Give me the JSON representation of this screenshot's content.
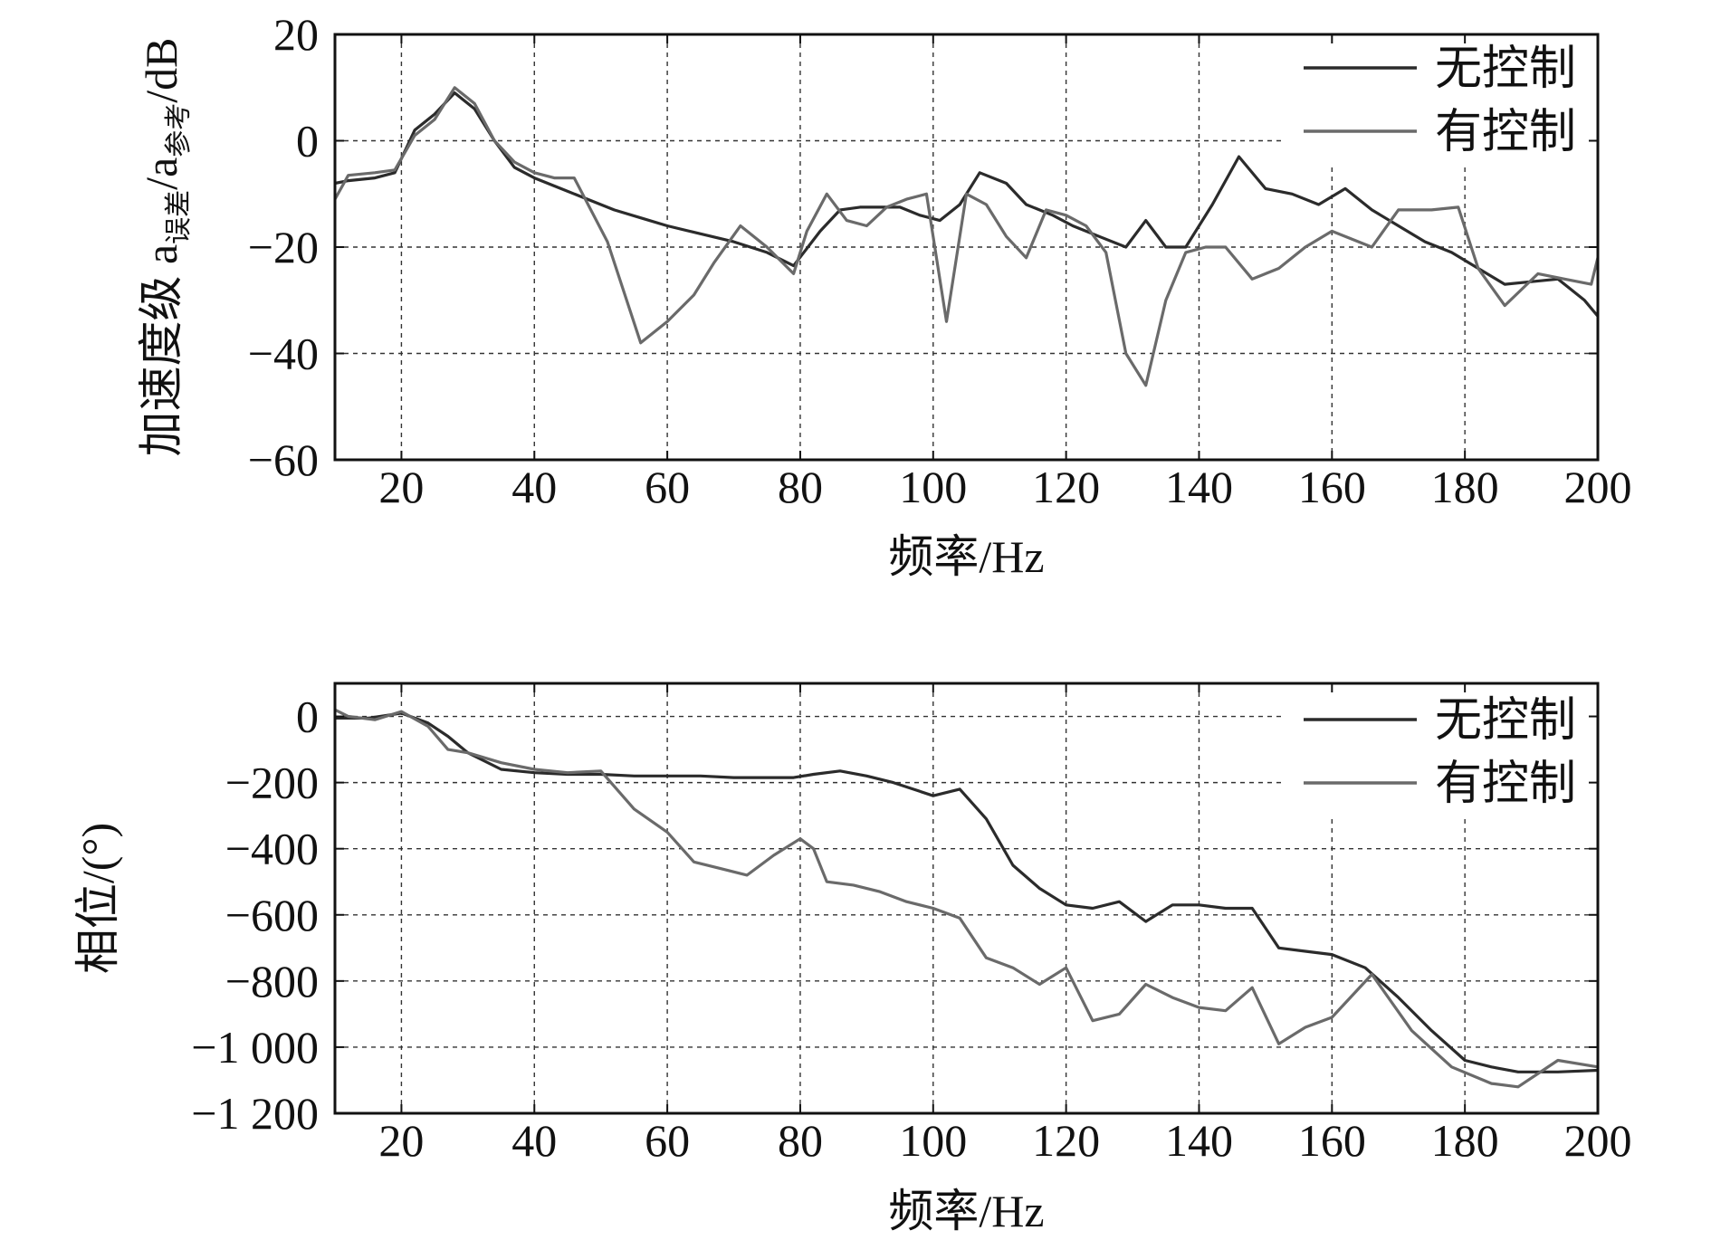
{
  "chart_data": [
    {
      "type": "line",
      "title": "",
      "xlabel": "频率/Hz",
      "ylabel": "加速度级 a误差/a参考/dB",
      "ylabel_parts": {
        "main": "加速度级 a",
        "sub1": "误差",
        "mid": "/a",
        "sub2": "参考",
        "end": "/dB"
      },
      "xlim": [
        10,
        200
      ],
      "ylim": [
        -60,
        20
      ],
      "xticks": [
        20,
        40,
        60,
        80,
        100,
        120,
        140,
        160,
        180,
        200
      ],
      "xtick_labels": [
        "20",
        "40",
        "60",
        "80",
        "100",
        "120",
        "140",
        "160",
        "180",
        "200"
      ],
      "yticks": [
        20,
        0,
        -20,
        -40,
        -60
      ],
      "ytick_labels": [
        "20",
        "0",
        "−20",
        "−40",
        "−60"
      ],
      "grid": true,
      "legend_position": "top-right",
      "series": [
        {
          "name": "无控制",
          "color": "#2b2b2b",
          "x": [
            10,
            12,
            16,
            19,
            22,
            25,
            28,
            31,
            34,
            37,
            40,
            44,
            48,
            52,
            56,
            60,
            65,
            70,
            75,
            79,
            83,
            86,
            89,
            92,
            95,
            98,
            101,
            104,
            107,
            111,
            114,
            118,
            121,
            125,
            129,
            132,
            135,
            138,
            142,
            146,
            150,
            154,
            158,
            162,
            166,
            170,
            174,
            178,
            182,
            186,
            190,
            194,
            198,
            200
          ],
          "y": [
            -8,
            -7.5,
            -7,
            -6,
            2,
            5,
            9,
            6,
            0,
            -5,
            -7,
            -9,
            -11,
            -13,
            -14.5,
            -16,
            -17.5,
            -19,
            -21,
            -23.5,
            -17,
            -13,
            -12.5,
            -12.5,
            -12.5,
            -14,
            -15,
            -12,
            -6,
            -8,
            -12,
            -14,
            -16,
            -18,
            -20,
            -15,
            -20,
            -20,
            -12,
            -3,
            -9,
            -10,
            -12,
            -9,
            -13,
            -16,
            -19,
            -21,
            -24,
            -27,
            -26.5,
            -26,
            -30,
            -33
          ]
        },
        {
          "name": "有控制",
          "color": "#6a6a6a",
          "x": [
            10,
            12,
            16,
            19,
            22,
            25,
            28,
            31,
            34,
            37,
            40,
            43,
            46,
            51,
            56,
            60,
            64,
            67,
            71,
            75,
            79,
            81,
            84,
            87,
            90,
            93,
            96,
            99,
            102,
            105,
            108,
            111,
            114,
            117,
            120,
            123,
            126,
            129,
            132,
            135,
            138,
            141,
            144,
            148,
            152,
            156,
            160,
            166,
            170,
            175,
            179,
            182,
            186,
            191,
            195,
            199,
            200
          ],
          "y": [
            -11,
            -6.5,
            -6,
            -5.5,
            1,
            4,
            10,
            7,
            0,
            -4,
            -6,
            -7,
            -7,
            -19,
            -38,
            -34,
            -29,
            -23,
            -16,
            -20,
            -25,
            -17,
            -10,
            -15,
            -16,
            -12.5,
            -11,
            -10,
            -34,
            -10,
            -12,
            -18,
            -22,
            -13,
            -14,
            -16,
            -21,
            -40,
            -46,
            -30,
            -21,
            -20,
            -20,
            -26,
            -24,
            -20,
            -17,
            -20,
            -13,
            -13,
            -12.5,
            -24,
            -31,
            -25,
            -26,
            -27,
            -22
          ]
        }
      ]
    },
    {
      "type": "line",
      "title": "",
      "xlabel": "频率/Hz",
      "ylabel": "相位/(°)",
      "xlim": [
        10,
        200
      ],
      "ylim": [
        -1200,
        100
      ],
      "xticks": [
        20,
        40,
        60,
        80,
        100,
        120,
        140,
        160,
        180,
        200
      ],
      "xtick_labels": [
        "20",
        "40",
        "60",
        "80",
        "100",
        "120",
        "140",
        "160",
        "180",
        "200"
      ],
      "yticks": [
        0,
        -200,
        -400,
        -600,
        -800,
        -1000,
        -1200
      ],
      "ytick_labels": [
        "0",
        "−200",
        "−400",
        "−600",
        "−800",
        "−1 000",
        "−1 200"
      ],
      "grid": true,
      "legend_position": "top-right",
      "series": [
        {
          "name": "无控制",
          "color": "#2b2b2b",
          "x": [
            10,
            15,
            20,
            24,
            27,
            30,
            35,
            40,
            45,
            50,
            55,
            60,
            65,
            70,
            75,
            79,
            82,
            86,
            90,
            94,
            97,
            100,
            104,
            108,
            112,
            116,
            120,
            124,
            128,
            132,
            136,
            140,
            144,
            148,
            152,
            156,
            160,
            165,
            170,
            175,
            180,
            184,
            188,
            194,
            200
          ],
          "y": [
            -5,
            -5,
            10,
            -20,
            -60,
            -110,
            -160,
            -170,
            -175,
            -175,
            -180,
            -180,
            -180,
            -185,
            -185,
            -185,
            -175,
            -165,
            -180,
            -200,
            -220,
            -240,
            -220,
            -310,
            -450,
            -520,
            -570,
            -580,
            -560,
            -620,
            -570,
            -570,
            -580,
            -580,
            -700,
            -710,
            -720,
            -760,
            -850,
            -950,
            -1040,
            -1060,
            -1075,
            -1075,
            -1070
          ]
        },
        {
          "name": "有控制",
          "color": "#6a6a6a",
          "x": [
            10,
            12,
            16,
            20,
            24,
            27,
            30,
            35,
            40,
            45,
            50,
            55,
            60,
            64,
            68,
            72,
            76,
            80,
            82,
            84,
            88,
            92,
            96,
            100,
            104,
            108,
            112,
            116,
            120,
            124,
            128,
            132,
            136,
            140,
            144,
            148,
            152,
            156,
            160,
            166,
            172,
            178,
            184,
            188,
            194,
            200
          ],
          "y": [
            20,
            0,
            -10,
            15,
            -30,
            -100,
            -110,
            -140,
            -160,
            -170,
            -165,
            -280,
            -350,
            -440,
            -460,
            -480,
            -420,
            -370,
            -400,
            -500,
            -510,
            -530,
            -560,
            -580,
            -610,
            -730,
            -760,
            -810,
            -760,
            -920,
            -900,
            -810,
            -850,
            -880,
            -890,
            -820,
            -990,
            -940,
            -910,
            -780,
            -950,
            -1060,
            -1110,
            -1120,
            -1040,
            -1060
          ]
        }
      ]
    }
  ]
}
